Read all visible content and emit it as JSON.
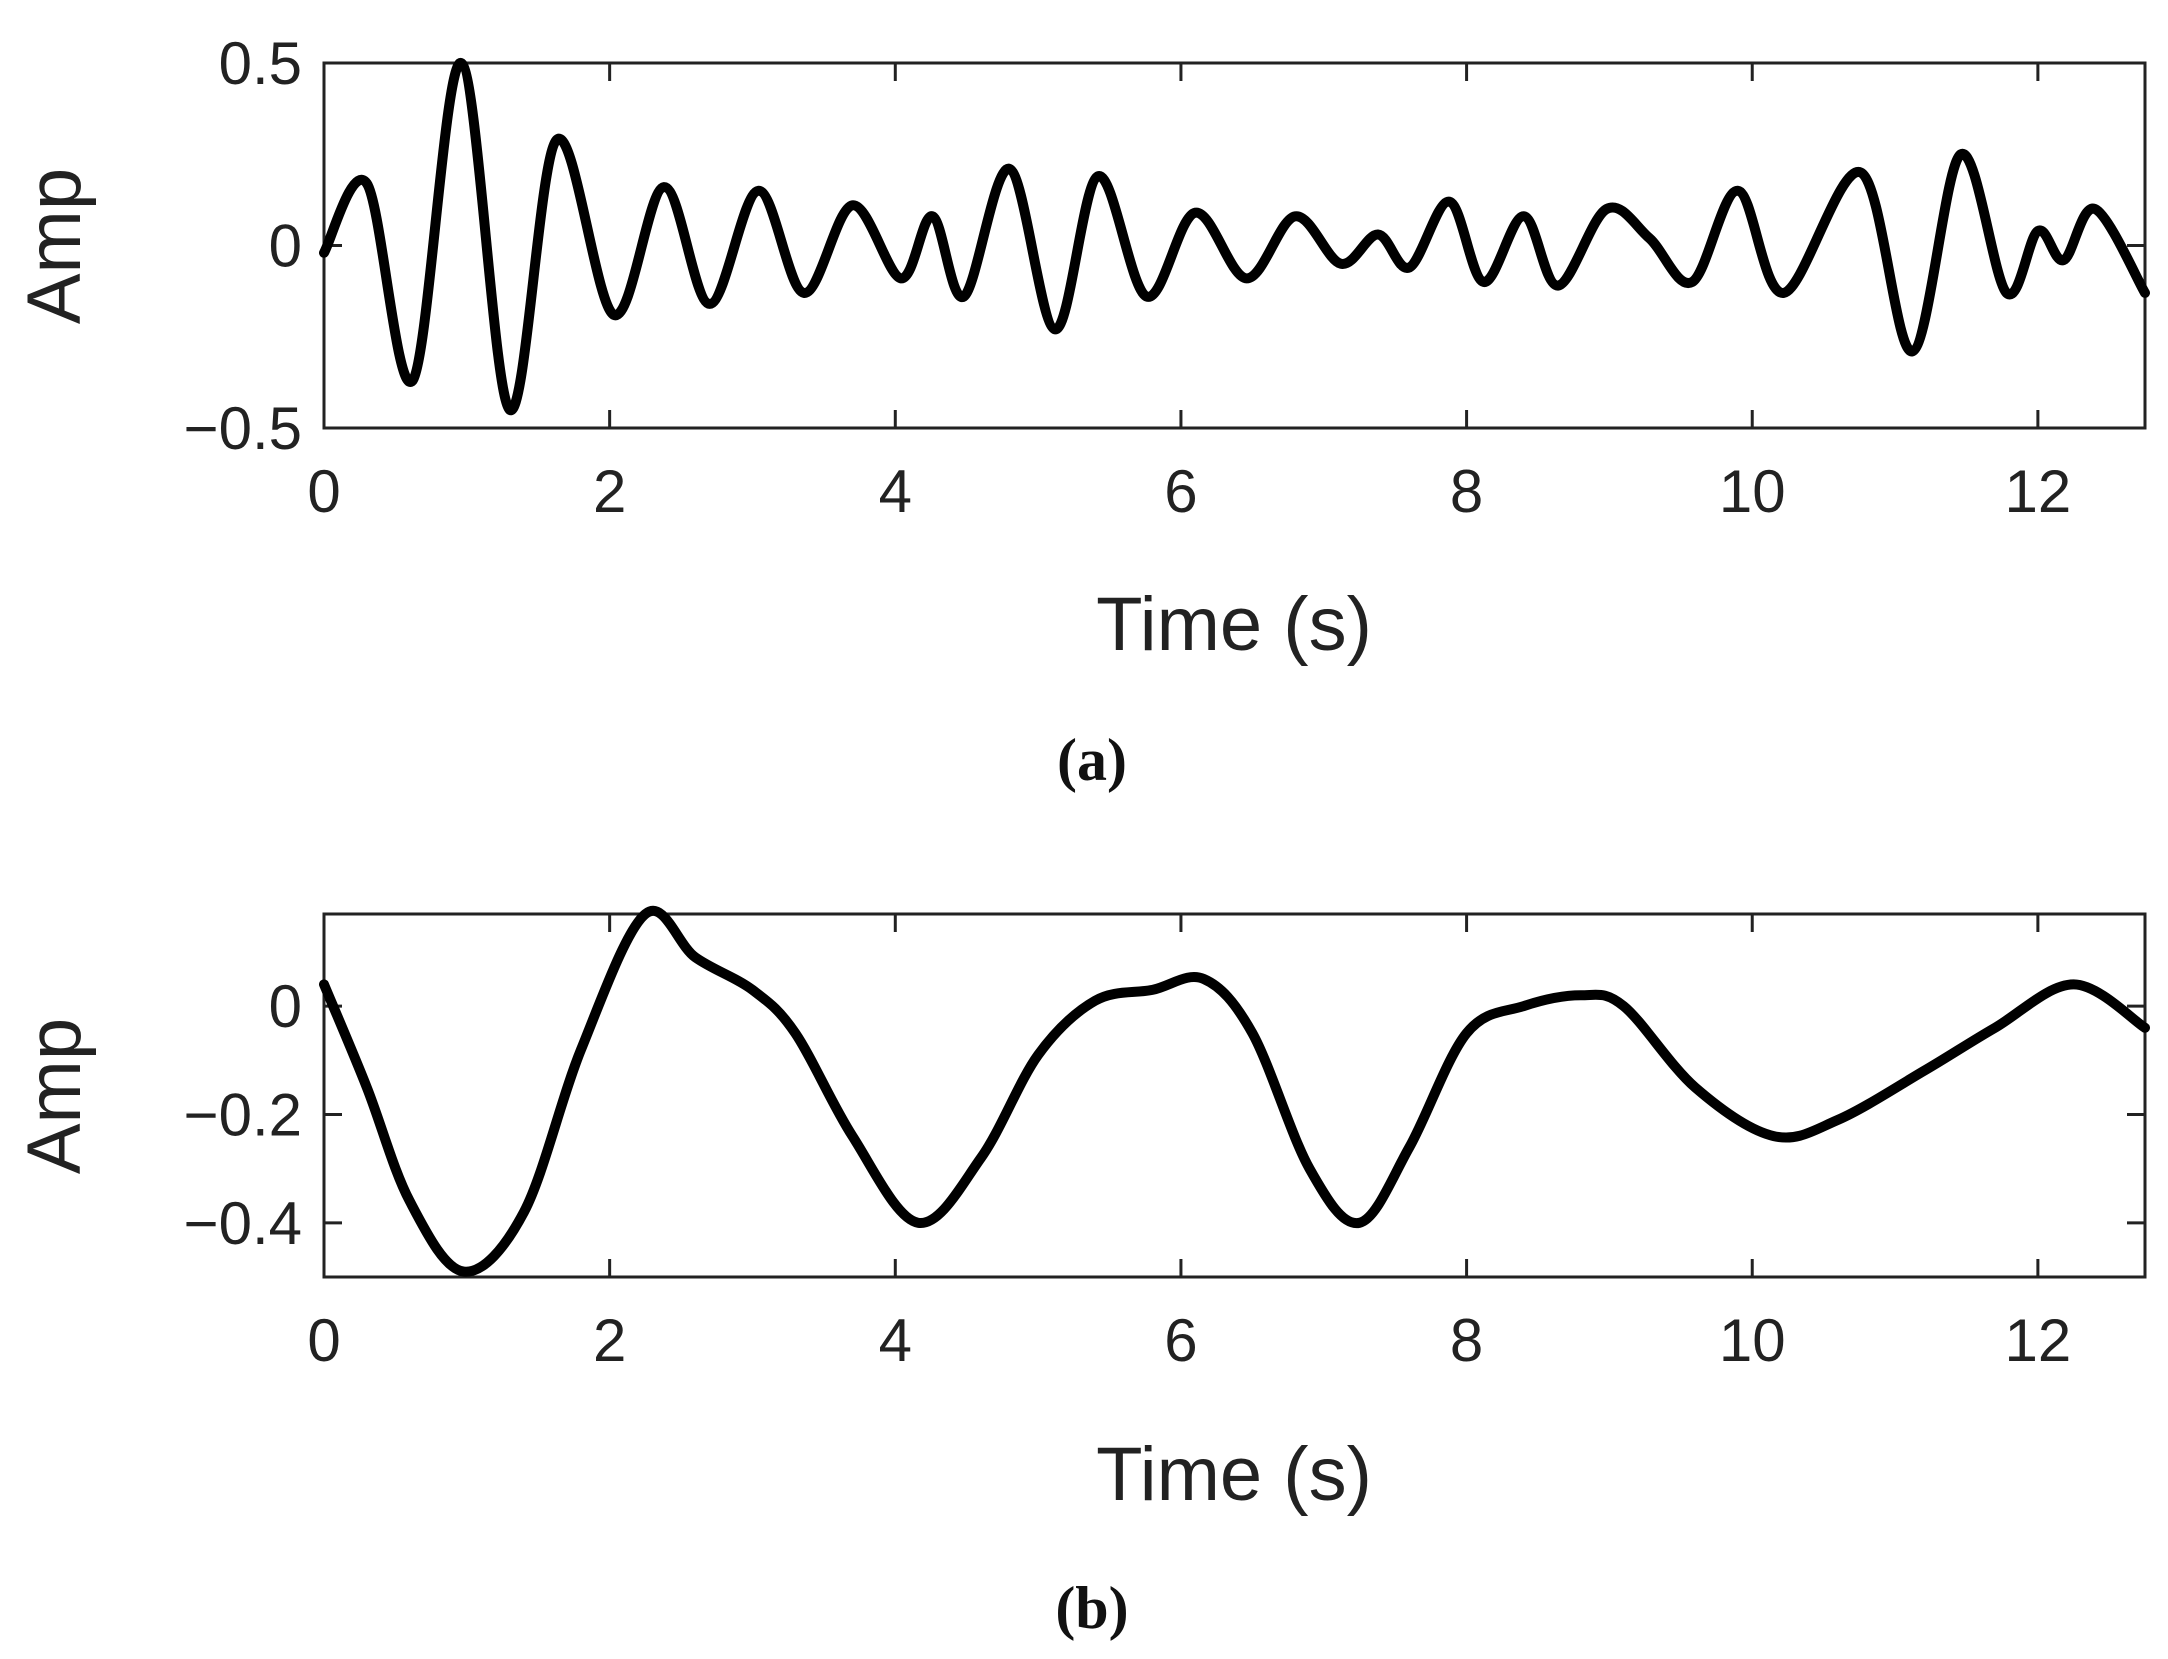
{
  "chart_data": [
    {
      "type": "line",
      "caption": "(a)",
      "xlabel": "Time (s)",
      "ylabel": "Amp",
      "xlim": [
        0,
        12.75
      ],
      "ylim": [
        -0.5,
        0.5
      ],
      "xticks": [
        0,
        2,
        4,
        6,
        8,
        10,
        12
      ],
      "xtick_labels": [
        "0",
        "2",
        "4",
        "6",
        "8",
        "10",
        "12"
      ],
      "yticks": [
        -0.5,
        0,
        0.5
      ],
      "ytick_labels": [
        "−0.5",
        "0",
        "0.5"
      ],
      "grid": false,
      "color": "#000000",
      "series": [
        {
          "x": [
            0,
            0.3,
            0.62,
            0.96,
            1.3,
            1.63,
            2.03,
            2.38,
            2.7,
            3.04,
            3.36,
            3.7,
            4.04,
            4.26,
            4.48,
            4.8,
            5.12,
            5.42,
            5.76,
            6.1,
            6.46,
            6.8,
            7.12,
            7.38,
            7.6,
            7.88,
            8.12,
            8.4,
            8.64,
            8.98,
            9.28,
            9.58,
            9.9,
            10.22,
            10.76,
            11.12,
            11.46,
            11.78,
            12.0,
            12.18,
            12.4,
            12.75
          ],
          "y": [
            -0.02,
            0.17,
            -0.37,
            0.5,
            -0.45,
            0.29,
            -0.19,
            0.16,
            -0.16,
            0.15,
            -0.13,
            0.11,
            -0.09,
            0.08,
            -0.14,
            0.21,
            -0.23,
            0.19,
            -0.14,
            0.09,
            -0.09,
            0.08,
            -0.05,
            0.03,
            -0.06,
            0.12,
            -0.1,
            0.08,
            -0.11,
            0.1,
            0.02,
            -0.1,
            0.15,
            -0.13,
            0.2,
            -0.29,
            0.25,
            -0.13,
            0.04,
            -0.04,
            0.1,
            -0.13
          ]
        }
      ]
    },
    {
      "type": "line",
      "caption": "(b)",
      "xlabel": "Time (s)",
      "ylabel": "Amp",
      "xlim": [
        0,
        12.75
      ],
      "ylim": [
        -0.5,
        0.17
      ],
      "xticks": [
        0,
        2,
        4,
        6,
        8,
        10,
        12
      ],
      "xtick_labels": [
        "0",
        "2",
        "4",
        "6",
        "8",
        "10",
        "12"
      ],
      "yticks": [
        -0.4,
        -0.2,
        0
      ],
      "ytick_labels": [
        "−0.4",
        "−0.2",
        "0"
      ],
      "grid": false,
      "color": "#000000",
      "series": [
        {
          "x": [
            0,
            0.3,
            0.6,
            0.98,
            1.4,
            1.8,
            2.25,
            2.6,
            3.0,
            3.3,
            3.7,
            4.16,
            4.6,
            5.0,
            5.4,
            5.8,
            6.16,
            6.5,
            6.9,
            7.25,
            7.6,
            8.0,
            8.4,
            8.8,
            9.1,
            9.6,
            10.15,
            10.6,
            11.2,
            11.7,
            12.25,
            12.75
          ],
          "y": [
            0.04,
            -0.15,
            -0.36,
            -0.49,
            -0.38,
            -0.08,
            0.17,
            0.09,
            0.03,
            -0.05,
            -0.24,
            -0.4,
            -0.28,
            -0.09,
            0.01,
            0.03,
            0.05,
            -0.05,
            -0.3,
            -0.4,
            -0.26,
            -0.05,
            0.0,
            0.02,
            0.0,
            -0.15,
            -0.24,
            -0.21,
            -0.12,
            -0.04,
            0.04,
            -0.04
          ]
        }
      ]
    }
  ]
}
